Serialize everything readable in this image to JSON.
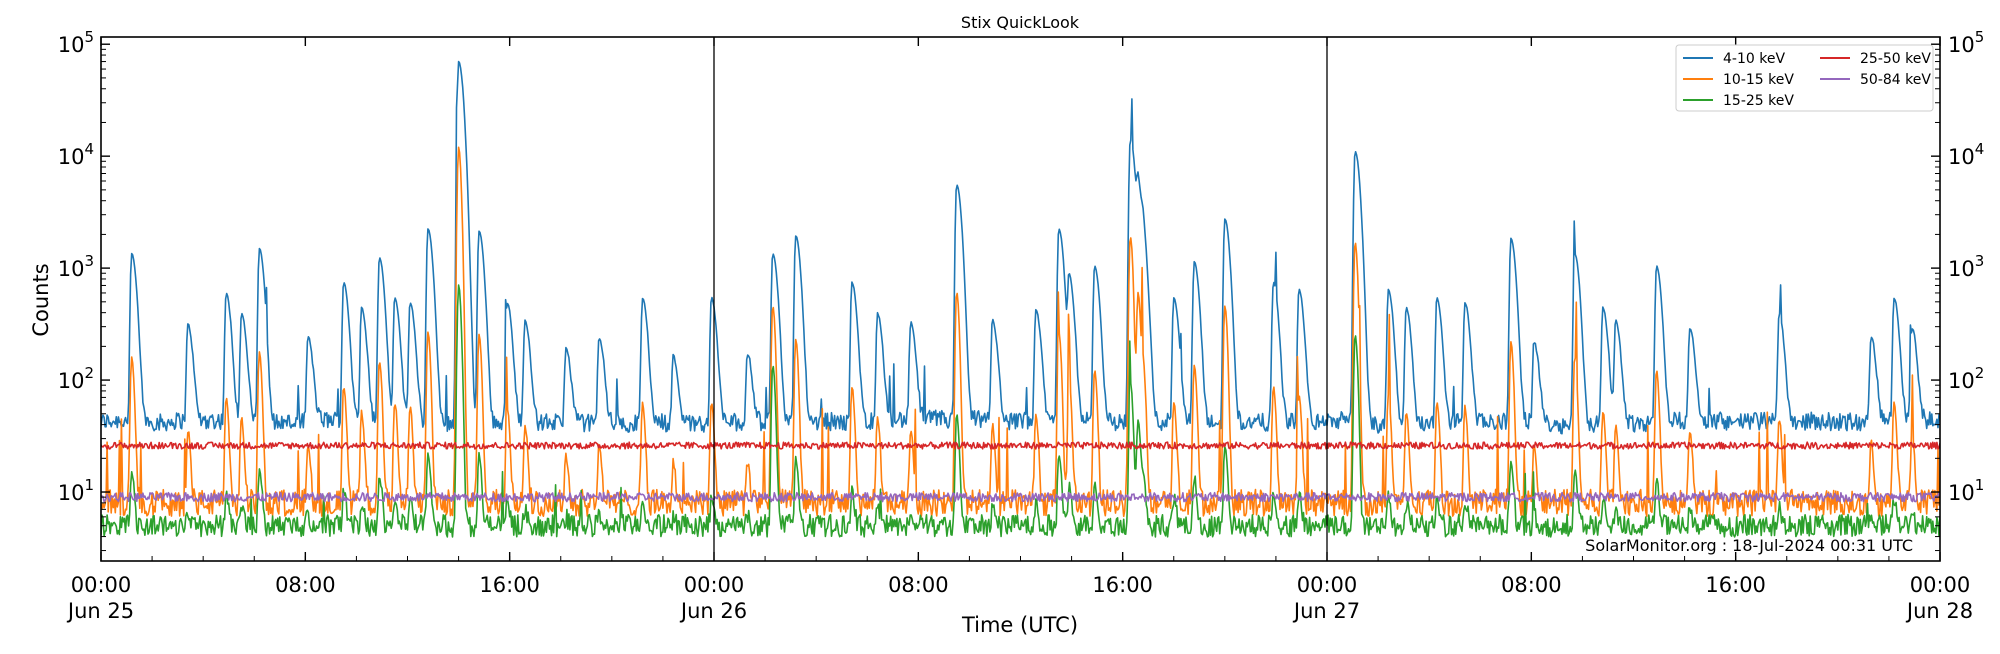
{
  "chart_data": {
    "type": "line",
    "title": "Stix QuickLook",
    "xlabel": "Time (UTC)",
    "ylabel": "Counts",
    "yscale": "log",
    "ylim": [
      2.42,
      116000
    ],
    "xlim": [
      "2024-06-25T00:00",
      "2024-06-28T00:00"
    ],
    "grid": false,
    "legend_position": "top-right",
    "y_ticks": [
      {
        "value": 10,
        "base": "10",
        "exp": "1"
      },
      {
        "value": 100,
        "base": "10",
        "exp": "2"
      },
      {
        "value": 1000,
        "base": "10",
        "exp": "3"
      },
      {
        "value": 10000,
        "base": "10",
        "exp": "4"
      },
      {
        "value": 100000,
        "base": "10",
        "exp": "5"
      }
    ],
    "x_ticks": [
      {
        "time": "2024-06-25T00:00",
        "label": "00:00",
        "date": "Jun 25"
      },
      {
        "time": "2024-06-25T08:00",
        "label": "08:00",
        "date": ""
      },
      {
        "time": "2024-06-25T16:00",
        "label": "16:00",
        "date": ""
      },
      {
        "time": "2024-06-26T00:00",
        "label": "00:00",
        "date": "Jun 26"
      },
      {
        "time": "2024-06-26T08:00",
        "label": "08:00",
        "date": ""
      },
      {
        "time": "2024-06-26T16:00",
        "label": "16:00",
        "date": ""
      },
      {
        "time": "2024-06-27T00:00",
        "label": "00:00",
        "date": "Jun 27"
      },
      {
        "time": "2024-06-27T08:00",
        "label": "08:00",
        "date": ""
      },
      {
        "time": "2024-06-27T16:00",
        "label": "16:00",
        "date": ""
      },
      {
        "time": "2024-06-28T00:00",
        "label": "00:00",
        "date": "Jun 28"
      }
    ],
    "day_lines": [
      "2024-06-26T00:00",
      "2024-06-27T00:00"
    ],
    "annotation": "SolarMonitor.org : 18-Jul-2024 00:31 UTC",
    "series": [
      {
        "name": "4-10 keV",
        "color": "#1f77b4",
        "baseline": 42,
        "peaks": [
          [
            "2024-06-25T01:12",
            1300
          ],
          [
            "2024-06-25T03:24",
            270
          ],
          [
            "2024-06-25T04:54",
            550
          ],
          [
            "2024-06-25T05:30",
            350
          ],
          [
            "2024-06-25T06:12",
            1450
          ],
          [
            "2024-06-25T08:06",
            200
          ],
          [
            "2024-06-25T09:30",
            700
          ],
          [
            "2024-06-25T10:12",
            400
          ],
          [
            "2024-06-25T10:54",
            1200
          ],
          [
            "2024-06-25T11:30",
            500
          ],
          [
            "2024-06-25T12:06",
            450
          ],
          [
            "2024-06-25T12:48",
            2200
          ],
          [
            "2024-06-25T14:00",
            70000
          ],
          [
            "2024-06-25T14:48",
            2100
          ],
          [
            "2024-06-25T15:54",
            450
          ],
          [
            "2024-06-25T16:36",
            300
          ],
          [
            "2024-06-25T18:12",
            150
          ],
          [
            "2024-06-25T19:30",
            200
          ],
          [
            "2024-06-25T21:12",
            500
          ],
          [
            "2024-06-25T22:24",
            120
          ],
          [
            "2024-06-25T23:54",
            500
          ],
          [
            "2024-06-26T01:18",
            130
          ],
          [
            "2024-06-26T02:18",
            1300
          ],
          [
            "2024-06-26T03:12",
            1900
          ],
          [
            "2024-06-26T05:24",
            700
          ],
          [
            "2024-06-26T06:24",
            350
          ],
          [
            "2024-06-26T07:42",
            280
          ],
          [
            "2024-06-26T09:30",
            5500
          ],
          [
            "2024-06-26T10:54",
            300
          ],
          [
            "2024-06-26T12:36",
            380
          ],
          [
            "2024-06-26T13:30",
            2200
          ],
          [
            "2024-06-26T13:54",
            800
          ],
          [
            "2024-06-26T14:54",
            1000
          ],
          [
            "2024-06-26T16:18",
            14000
          ],
          [
            "2024-06-26T16:36",
            5000
          ],
          [
            "2024-06-26T16:48",
            1100
          ],
          [
            "2024-06-26T18:00",
            500
          ],
          [
            "2024-06-26T18:48",
            1100
          ],
          [
            "2024-06-26T20:00",
            2700
          ],
          [
            "2024-06-26T21:54",
            700
          ],
          [
            "2024-06-26T22:54",
            600
          ],
          [
            "2024-06-27T01:06",
            11000
          ],
          [
            "2024-06-27T02:24",
            600
          ],
          [
            "2024-06-27T03:06",
            400
          ],
          [
            "2024-06-27T04:18",
            500
          ],
          [
            "2024-06-27T05:24",
            450
          ],
          [
            "2024-06-27T07:12",
            1800
          ],
          [
            "2024-06-27T08:06",
            180
          ],
          [
            "2024-06-27T09:42",
            1300
          ],
          [
            "2024-06-27T10:48",
            400
          ],
          [
            "2024-06-27T11:18",
            300
          ],
          [
            "2024-06-27T12:54",
            1000
          ],
          [
            "2024-06-27T14:12",
            250
          ],
          [
            "2024-06-27T17:42",
            350
          ],
          [
            "2024-06-27T21:18",
            200
          ],
          [
            "2024-06-27T22:12",
            500
          ],
          [
            "2024-06-27T22:54",
            250
          ]
        ]
      },
      {
        "name": "10-15 keV",
        "color": "#ff7f0e",
        "baseline": 8,
        "peaks": [
          [
            "2024-06-25T14:00",
            12000
          ],
          [
            "2024-06-26T16:18",
            1900
          ],
          [
            "2024-06-27T01:06",
            1700
          ],
          [
            "2024-06-26T09:30",
            600
          ],
          [
            "2024-06-26T02:18",
            450
          ],
          [
            "2024-06-26T20:00",
            450
          ]
        ]
      },
      {
        "name": "15-25 keV",
        "color": "#2ca02c",
        "baseline": 5,
        "peaks": [
          [
            "2024-06-25T14:00",
            700
          ],
          [
            "2024-06-27T01:06",
            250
          ],
          [
            "2024-06-26T02:18",
            130
          ],
          [
            "2024-06-26T16:18",
            90
          ]
        ]
      },
      {
        "name": "25-50 keV",
        "color": "#d62728",
        "baseline": 26,
        "peaks": []
      },
      {
        "name": "50-84 keV",
        "color": "#9467bd",
        "baseline": 9,
        "peaks": []
      }
    ]
  }
}
